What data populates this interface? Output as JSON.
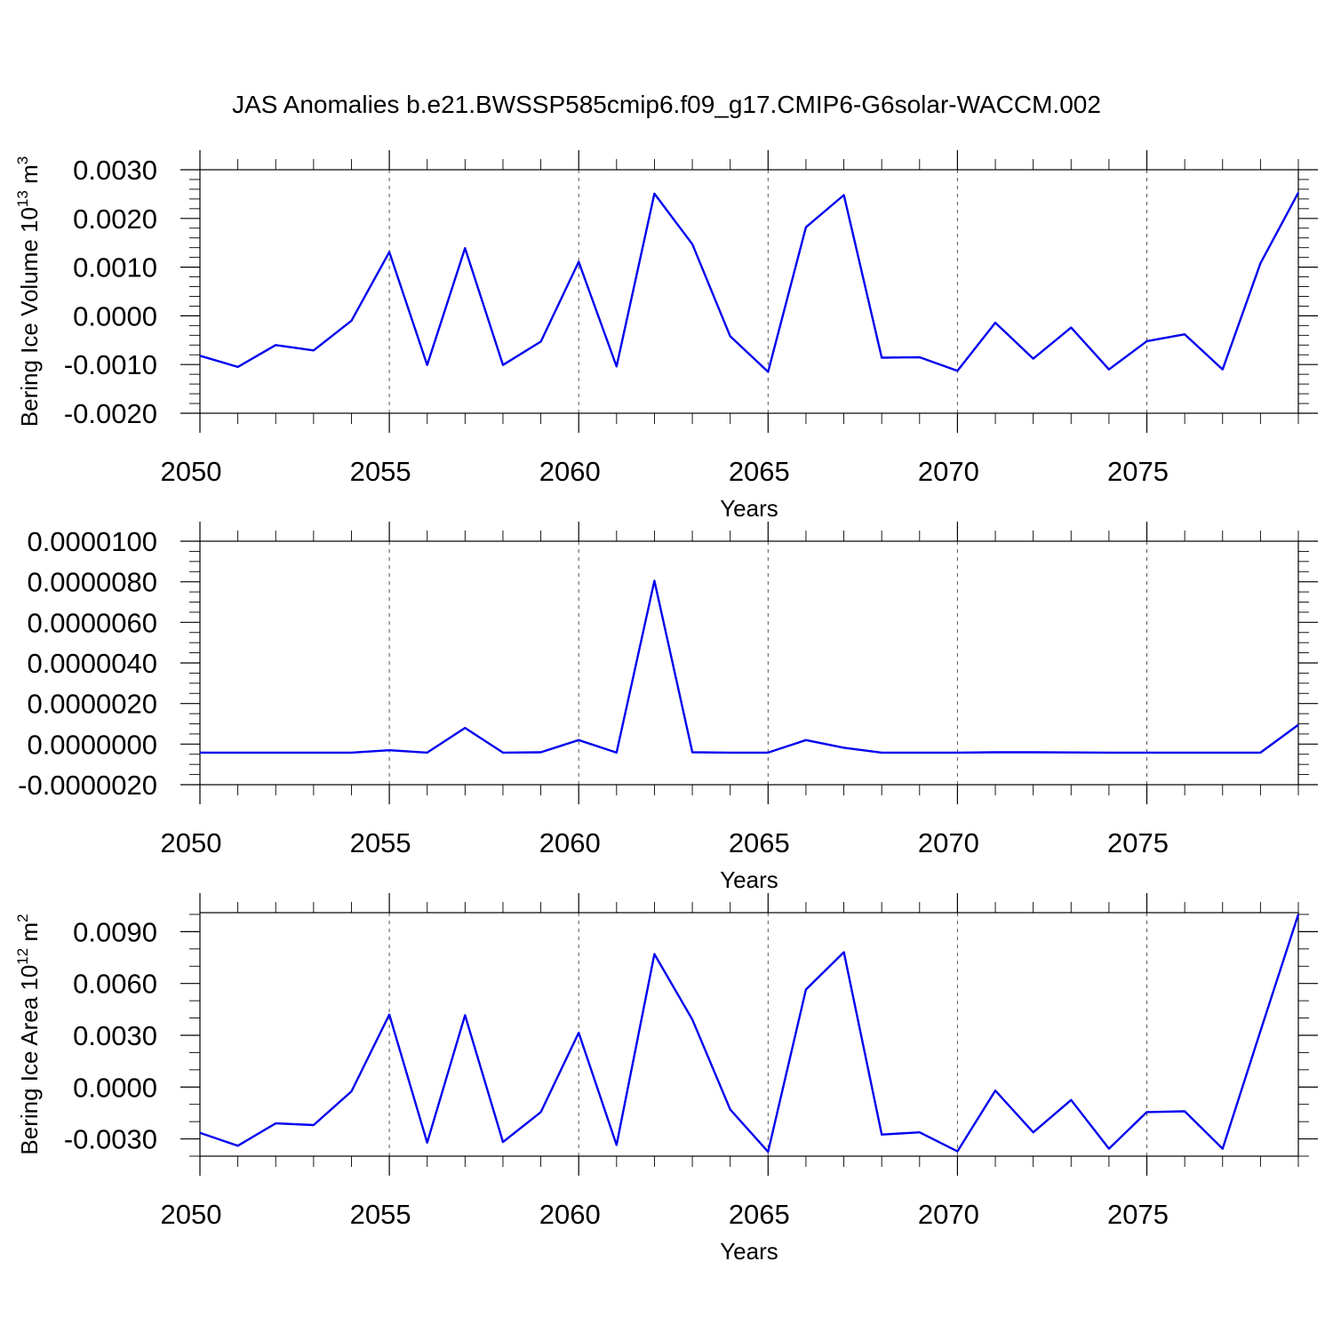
{
  "title": "JAS Anomalies b.e21.BWSSP585cmip6.f09_g17.CMIP6-G6solar-WACCM.002",
  "colors": {
    "series": "#0000ee",
    "axis": "#000000",
    "grid": "#555555"
  },
  "chart_data": [
    {
      "type": "line",
      "xlabel": "Years",
      "ylabel": "Bering Ice Volume 10",
      "ylabel_sup": "13",
      "ylabel_unit": " m",
      "ylabel_unit_sup": "3",
      "xlim": [
        2050,
        2079
      ],
      "ylim": [
        -0.002,
        0.003
      ],
      "xticks": [
        2050,
        2055,
        2060,
        2065,
        2070,
        2075
      ],
      "xtick_labels": [
        "2050",
        "2055",
        "2060",
        "2065",
        "2070",
        "2075"
      ],
      "yticks": [
        -0.002,
        -0.001,
        0.0,
        0.001,
        0.002,
        0.003
      ],
      "ytick_labels": [
        "-0.0020",
        "-0.0010",
        "0.0000",
        "0.0010",
        "0.0020",
        "0.0030"
      ],
      "ymajor_step": 0.001,
      "yminor_per_major": 5,
      "xminor_step": 1,
      "grid_x": true,
      "x": [
        2050,
        2051,
        2052,
        2053,
        2054,
        2055,
        2056,
        2057,
        2058,
        2059,
        2060,
        2061,
        2062,
        2063,
        2064,
        2065,
        2066,
        2067,
        2068,
        2069,
        2070,
        2071,
        2072,
        2073,
        2074,
        2075,
        2076,
        2077,
        2078,
        2079
      ],
      "series": [
        {
          "values": [
            -0.00082,
            -0.00105,
            -0.0006,
            -0.00071,
            -0.0001,
            0.00131,
            -0.00101,
            0.00139,
            -0.00101,
            -0.00053,
            0.00111,
            -0.00104,
            0.00251,
            0.00147,
            -0.00042,
            -0.00115,
            0.00182,
            0.00248,
            -0.00086,
            -0.00085,
            -0.00113,
            -0.00014,
            -0.00088,
            -0.00024,
            -0.0011,
            -0.00052,
            -0.00038,
            -0.0011,
            0.00108,
            0.00253
          ]
        }
      ]
    },
    {
      "type": "line",
      "xlabel": "Years",
      "ylabel": "",
      "xlim": [
        2050,
        2079
      ],
      "ylim": [
        -2e-06,
        1e-05
      ],
      "xticks": [
        2050,
        2055,
        2060,
        2065,
        2070,
        2075
      ],
      "xtick_labels": [
        "2050",
        "2055",
        "2060",
        "2065",
        "2070",
        "2075"
      ],
      "yticks": [
        -2e-06,
        0.0,
        2e-06,
        4e-06,
        6e-06,
        8e-06,
        1e-05
      ],
      "ytick_labels": [
        "-0.0000020",
        "0.0000000",
        "0.0000020",
        "0.0000040",
        "0.0000060",
        "0.0000080",
        "0.0000100"
      ],
      "ymajor_step": 2e-06,
      "yminor_per_major": 4,
      "xminor_step": 1,
      "grid_x": true,
      "x": [
        2050,
        2051,
        2052,
        2053,
        2054,
        2055,
        2056,
        2057,
        2058,
        2059,
        2060,
        2061,
        2062,
        2063,
        2064,
        2065,
        2066,
        2067,
        2068,
        2069,
        2070,
        2071,
        2072,
        2073,
        2074,
        2075,
        2076,
        2077,
        2078,
        2079
      ],
      "series": [
        {
          "values": [
            -4.2e-07,
            -4.2e-07,
            -4.2e-07,
            -4.2e-07,
            -4.2e-07,
            -3e-07,
            -4.2e-07,
            8e-07,
            -4.2e-07,
            -4e-07,
            2e-07,
            -4.2e-07,
            8.05e-06,
            -4e-07,
            -4.2e-07,
            -4.2e-07,
            2e-07,
            -1.8e-07,
            -4.2e-07,
            -4.2e-07,
            -4.2e-07,
            -4e-07,
            -4e-07,
            -4.1e-07,
            -4.2e-07,
            -4.2e-07,
            -4.2e-07,
            -4.2e-07,
            -4.2e-07,
            9.5e-07
          ]
        }
      ]
    },
    {
      "type": "line",
      "xlabel": "Years",
      "ylabel": "Bering Ice Area 10",
      "ylabel_sup": "12",
      "ylabel_unit": " m",
      "ylabel_unit_sup": "2",
      "xlim": [
        2050,
        2079
      ],
      "ylim": [
        -0.004,
        0.0101
      ],
      "xticks": [
        2050,
        2055,
        2060,
        2065,
        2070,
        2075
      ],
      "xtick_labels": [
        "2050",
        "2055",
        "2060",
        "2065",
        "2070",
        "2075"
      ],
      "yticks": [
        -0.003,
        0.0,
        0.003,
        0.006,
        0.009
      ],
      "ytick_labels": [
        "-0.0030",
        "0.0000",
        "0.0030",
        "0.0060",
        "0.0090"
      ],
      "ymajor_step": 0.003,
      "yminor_per_major": 3,
      "xminor_step": 1,
      "grid_x": true,
      "x": [
        2050,
        2051,
        2052,
        2053,
        2054,
        2055,
        2056,
        2057,
        2058,
        2059,
        2060,
        2061,
        2062,
        2063,
        2064,
        2065,
        2066,
        2067,
        2068,
        2069,
        2070,
        2071,
        2072,
        2073,
        2074,
        2075,
        2076,
        2077,
        2078,
        2079
      ],
      "series": [
        {
          "values": [
            -0.00265,
            -0.0034,
            -0.0021,
            -0.0022,
            -0.00025,
            0.0042,
            -0.00322,
            0.00416,
            -0.00318,
            -0.00145,
            0.00315,
            -0.00335,
            0.0077,
            0.00391,
            -0.0013,
            -0.00375,
            0.00565,
            0.00781,
            -0.00275,
            -0.00262,
            -0.00372,
            -0.0002,
            -0.00262,
            -0.00075,
            -0.00357,
            -0.00145,
            -0.0014,
            -0.00357,
            0.00325,
            0.01
          ]
        }
      ]
    }
  ]
}
